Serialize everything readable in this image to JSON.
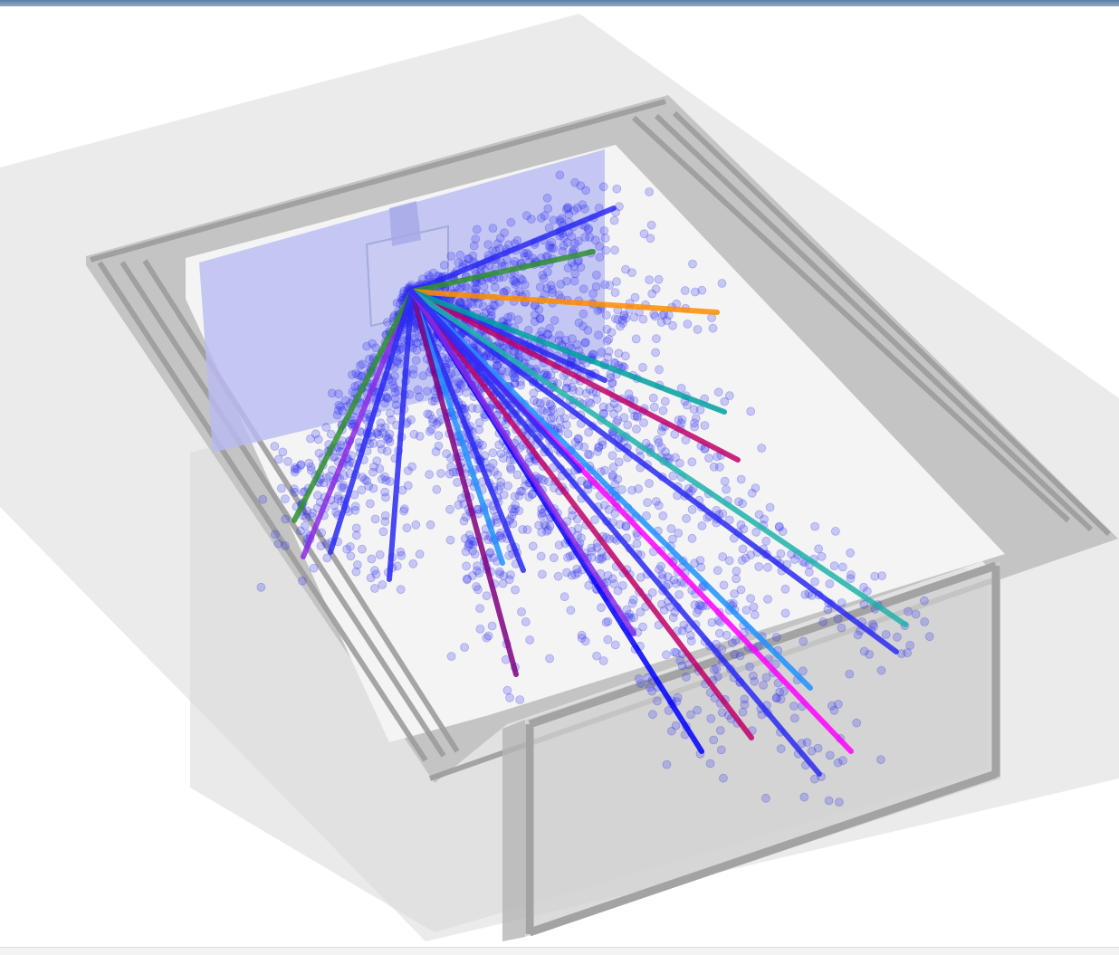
{
  "viewer": {
    "background": "#ffffff",
    "frame_color": "#5d7fa3",
    "caption": "",
    "particle_color": "#2a2af2",
    "wall_tint": "#b9bcf2",
    "trajectory_colors": [
      "#8a2be2",
      "#2f8f2f",
      "#ff8c00",
      "#0000ff",
      "#c0006a",
      "#00a0a0",
      "#ff00ff",
      "#1e90ff",
      "#800080",
      "#20b2aa"
    ]
  }
}
